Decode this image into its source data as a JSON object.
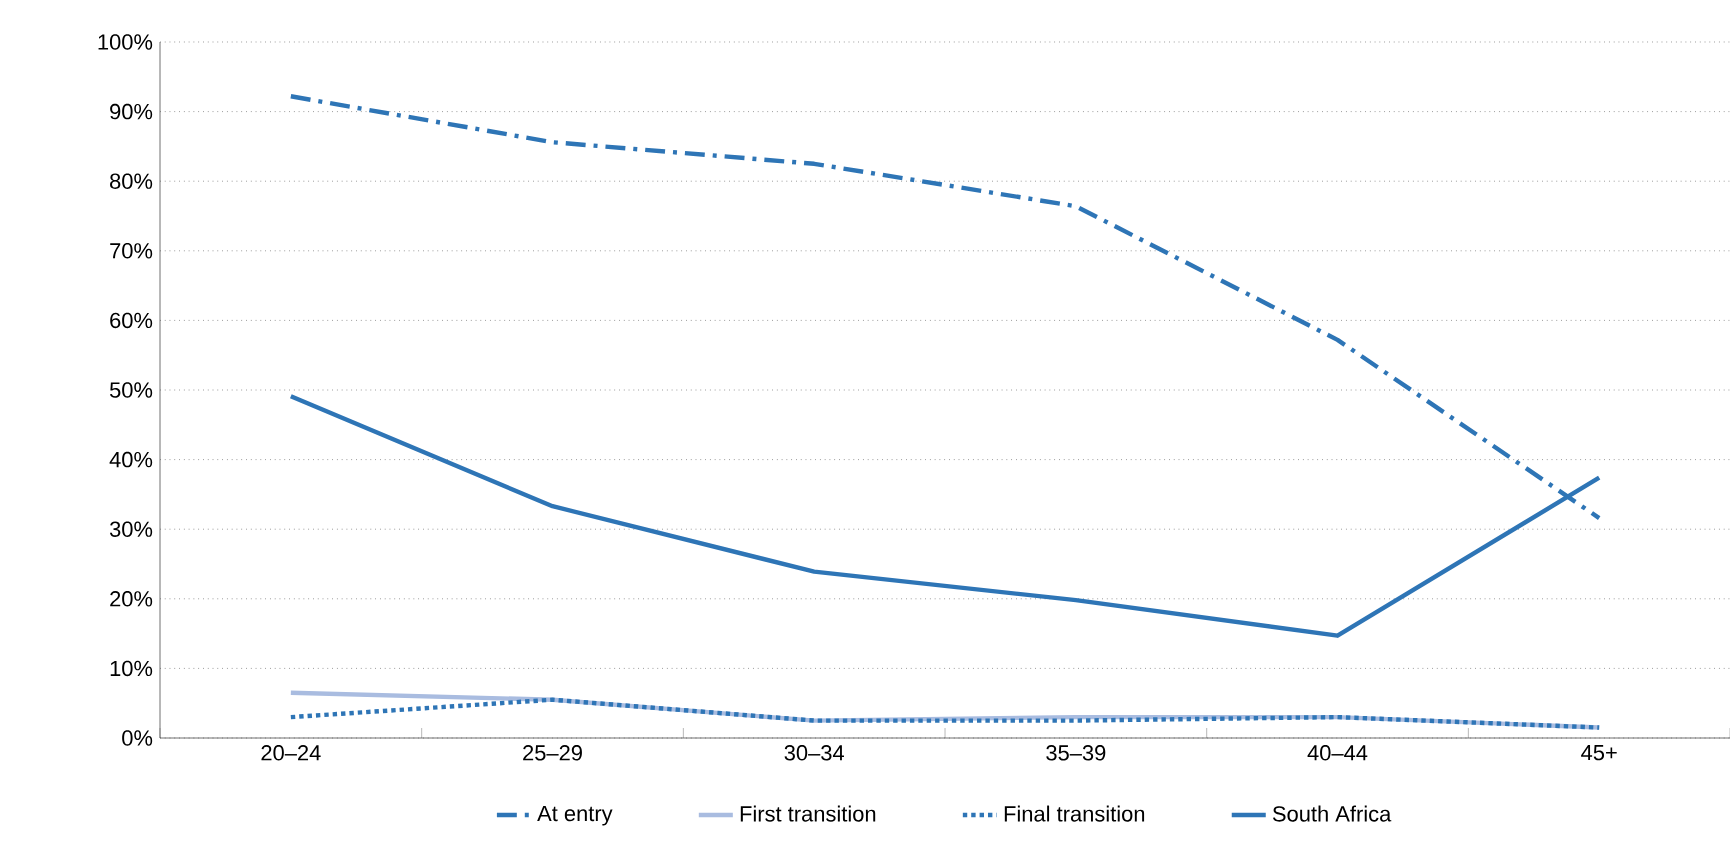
{
  "chart_data": {
    "type": "line",
    "categories": [
      "20–24",
      "25–29",
      "30–34",
      "35–39",
      "40–44",
      "45+"
    ],
    "series": [
      {
        "name": "At entry",
        "color": "#2e75b6",
        "line_style": "dashdot",
        "values": [
          92.2,
          85.6,
          82.5,
          76.4,
          57.2,
          31.6
        ]
      },
      {
        "name": "First transition",
        "color": "#a9bce0",
        "line_style": "solid",
        "values": [
          6.5,
          5.5,
          2.5,
          3,
          3,
          1.5
        ]
      },
      {
        "name": "Final transition",
        "color": "#2e75b6",
        "line_style": "dotted",
        "values": [
          3,
          5.5,
          2.5,
          2.5,
          3,
          1.5
        ]
      },
      {
        "name": "South Africa",
        "color": "#2e75b6",
        "line_style": "solid",
        "values": [
          49.1,
          33.3,
          23.9,
          19.8,
          14.7,
          37.4
        ]
      }
    ],
    "ylim": [
      0,
      100
    ],
    "yticks": [
      {
        "value": 0,
        "label": "0%"
      },
      {
        "value": 10,
        "label": "10%"
      },
      {
        "value": 20,
        "label": "20%"
      },
      {
        "value": 30,
        "label": "30%"
      },
      {
        "value": 40,
        "label": "40%"
      },
      {
        "value": 50,
        "label": "50%"
      },
      {
        "value": 60,
        "label": "60%"
      },
      {
        "value": 70,
        "label": "70%"
      },
      {
        "value": 80,
        "label": "80%"
      },
      {
        "value": 90,
        "label": "90%"
      },
      {
        "value": 100,
        "label": "100%"
      }
    ],
    "grid": "y",
    "legend": "bottom",
    "marker": "none"
  }
}
